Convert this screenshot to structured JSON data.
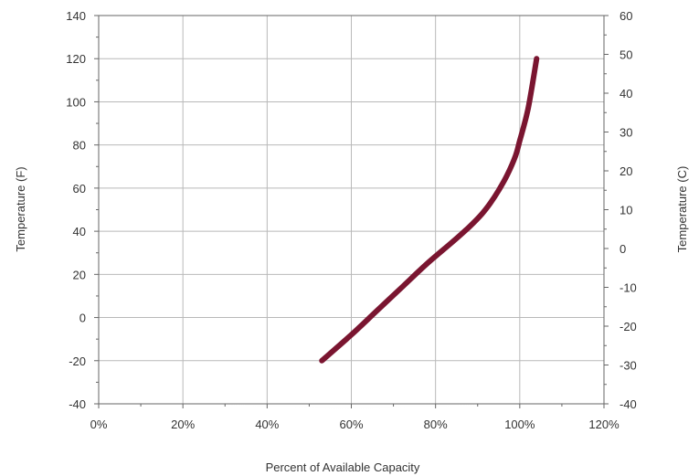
{
  "chart_data": {
    "type": "line",
    "title": "",
    "xlabel": "Percent of Available Capacity",
    "ylabel_left": "Temperature (F)",
    "ylabel_right": "Temperature (C)",
    "xlim": [
      0,
      120
    ],
    "ylim_left": [
      -40,
      140
    ],
    "ylim_right": [
      -40,
      60
    ],
    "x_ticks": [
      "0%",
      "20%",
      "40%",
      "60%",
      "80%",
      "100%",
      "120%"
    ],
    "y_ticks_left": [
      "-40",
      "-20",
      "0",
      "20",
      "40",
      "60",
      "80",
      "100",
      "120",
      "140"
    ],
    "y_ticks_right": [
      "-40",
      "-30",
      "-20",
      "-10",
      "0",
      "10",
      "20",
      "30",
      "40",
      "50",
      "60"
    ],
    "grid": true,
    "legend": "none",
    "series": [
      {
        "color": "#7a1530",
        "x": [
          53,
          60,
          66,
          72,
          78,
          84,
          88,
          91,
          93,
          95,
          97,
          99,
          100,
          101,
          102,
          103,
          104
        ],
        "y": [
          -20,
          -8,
          3,
          14,
          25,
          35,
          42,
          48,
          53,
          59,
          66,
          75,
          82,
          89,
          97,
          108,
          120
        ]
      }
    ]
  }
}
